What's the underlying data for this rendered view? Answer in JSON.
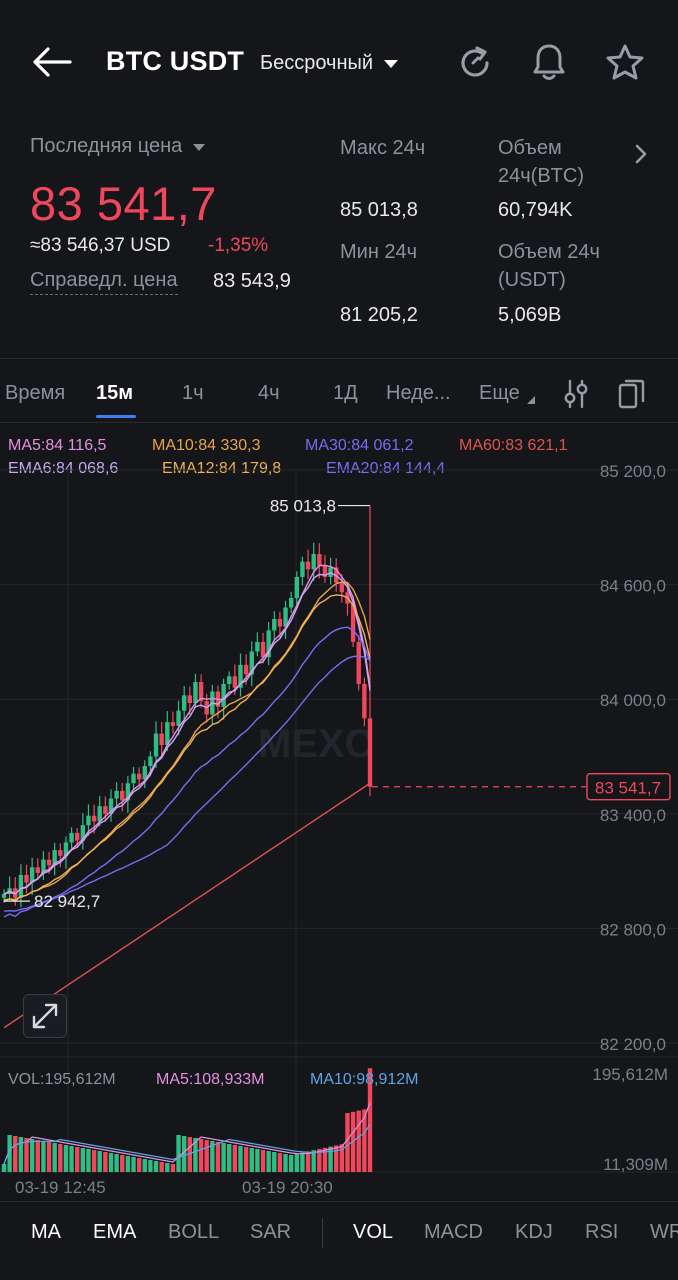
{
  "header": {
    "pair": "BTC USDT",
    "contract_type": "Бессрочный"
  },
  "stats": {
    "last_price_label": "Последняя цена",
    "last_price": "83 541,7",
    "approx_usd": "≈83 546,37 USD",
    "change_pct": "-1,35%",
    "fair_price_label": "Справедл. цена",
    "fair_price": "83 543,9",
    "high_label": "Макс 24ч",
    "high_value": "85 013,8",
    "low_label": "Мин 24ч",
    "low_value": "81 205,2",
    "vol_btc_label_1": "Объем",
    "vol_btc_label_2": "24ч(BTC)",
    "vol_btc_value": "60,794K",
    "vol_usdt_label_1": "Объем 24ч",
    "vol_usdt_label_2": "(USDT)",
    "vol_usdt_value": "5,069B"
  },
  "timeframes": [
    "Время",
    "15м",
    "1ч",
    "4ч",
    "1Д",
    "Неде...",
    "Еще"
  ],
  "active_timeframe": "15м",
  "legend": {
    "ma5": "MA5:84 116,5",
    "ma10": "MA10:84 330,3",
    "ma30": "MA30:84 061,2",
    "ma60": "MA60:83 621,1",
    "ema6": "EMA6:84 068,6",
    "ema12": "EMA12:84 179,8",
    "ema20": "EMA20:84 144,4",
    "vol": "VOL:195,612M",
    "vol_ma5": "MA5:108,933M",
    "vol_ma10": "MA10:98,912M"
  },
  "colors": {
    "up": "#2ebd85",
    "down": "#f0475c",
    "ma5": "#e58fe0",
    "ma10": "#e8a24a",
    "ma30": "#7b69f0",
    "ma60": "#e05252",
    "ema6": "#c7a9f5",
    "ema12": "#f0b254",
    "ema20": "#7a6df5",
    "accent": "#3d7ef6"
  },
  "chart": {
    "price_ticks": [
      "85 200,0",
      "84 600,0",
      "84 000,0",
      "83 400,0",
      "82 800,0",
      "82 200,0"
    ],
    "high_marker": "85 013,8",
    "low_marker": "82 942,7",
    "current_price_tag": "83 541,7",
    "volume_ticks": [
      "195,612M",
      "11,309M"
    ],
    "time_ticks": [
      "03-19 12:45",
      "03-19 20:30"
    ],
    "watermark": "MEXC"
  },
  "chart_data": {
    "type": "candlestick",
    "interval": "15м",
    "y_range": [
      82200,
      85200
    ],
    "close_series": [
      82980,
      83010,
      82960,
      83080,
      83040,
      83120,
      83090,
      83160,
      83130,
      83210,
      83180,
      83250,
      83300,
      83260,
      83340,
      83390,
      83360,
      83440,
      83400,
      83480,
      83520,
      83470,
      83560,
      83610,
      83580,
      83650,
      83700,
      83820,
      83760,
      83880,
      83860,
      83940,
      84020,
      83980,
      84090,
      83990,
      83920,
      84040,
      83960,
      84080,
      84120,
      84060,
      84180,
      84130,
      84250,
      84300,
      84220,
      84360,
      84420,
      84380,
      84480,
      84530,
      84640,
      84720,
      84680,
      84760,
      84700,
      84640,
      84690,
      84610,
      84560,
      84500,
      84300,
      84080,
      83900,
      83541.7
    ],
    "max_24h": 85013.8,
    "min_visible": 82942.7,
    "last_price": 83541.7
  },
  "indicator_tabs": [
    "MA",
    "EMA",
    "BOLL",
    "SAR",
    "VOL",
    "MACD",
    "KDJ",
    "RSI",
    "WR"
  ],
  "active_main_indicators": [
    "MA",
    "EMA"
  ],
  "active_sub_indicator": "VOL"
}
